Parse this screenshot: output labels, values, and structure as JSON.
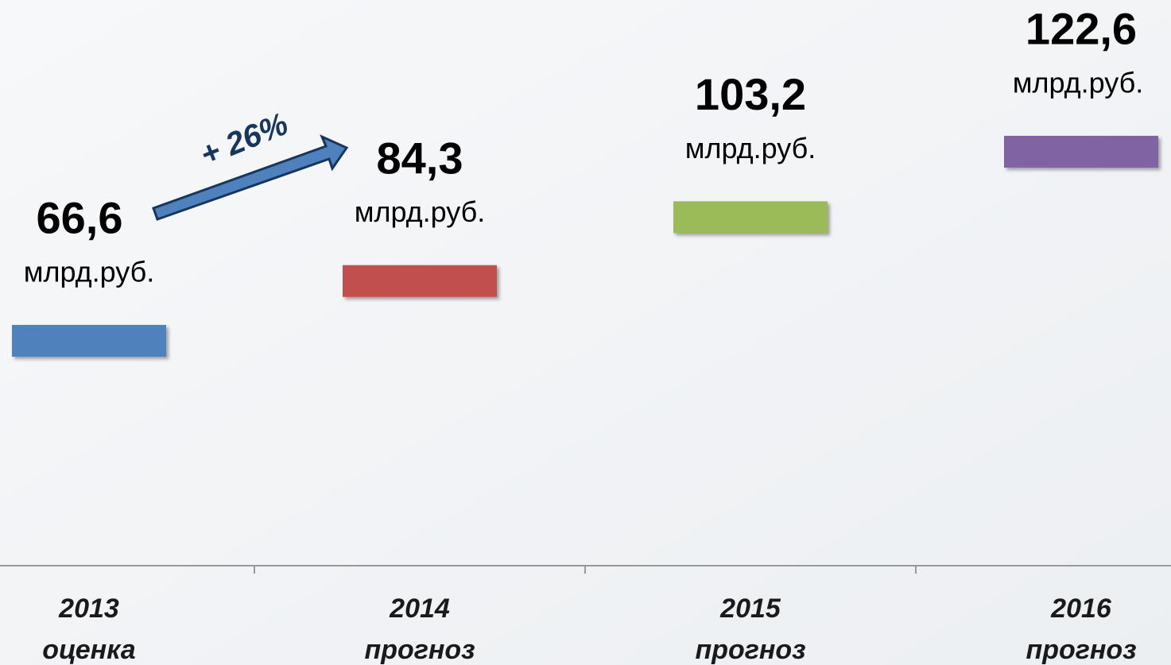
{
  "chart_data": {
    "type": "line",
    "categories": [
      [
        "2013",
        "оценка"
      ],
      [
        "2014",
        "прогноз"
      ],
      [
        "2015",
        "прогноз"
      ],
      [
        "2016",
        "прогноз"
      ]
    ],
    "values": [
      66.6,
      84.3,
      103.2,
      122.6
    ],
    "value_labels": [
      "66,6",
      "84,3",
      "103,2",
      "122,6"
    ],
    "unit": "млрд.руб.",
    "colors": [
      "#4f81bd",
      "#c0504d",
      "#9bbb59",
      "#8064a2"
    ],
    "annotation": "+ 26%",
    "ylim": [
      0,
      160
    ]
  }
}
